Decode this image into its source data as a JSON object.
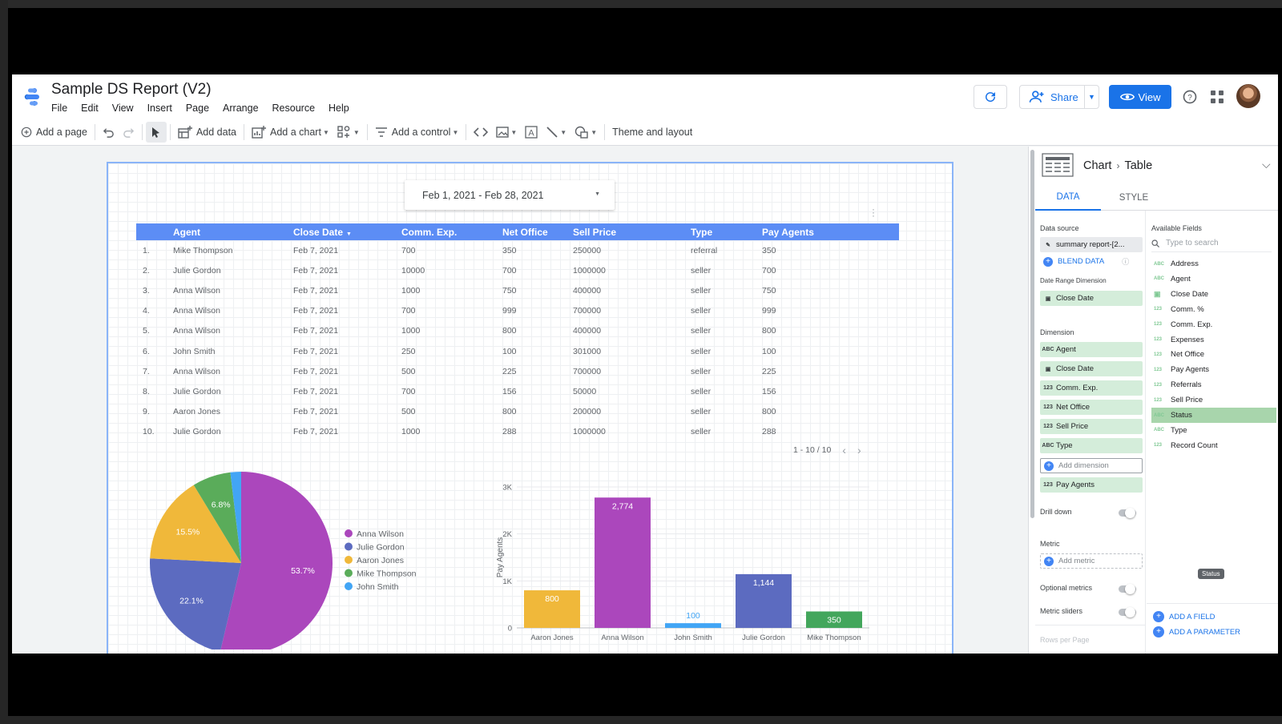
{
  "app": {
    "title": "Sample DS Report (V2)",
    "menu": [
      "File",
      "Edit",
      "View",
      "Insert",
      "Page",
      "Arrange",
      "Resource",
      "Help"
    ],
    "share_label": "Share",
    "view_label": "View",
    "accent": "#1a73e8"
  },
  "toolbar": {
    "add_page": "Add a page",
    "add_data": "Add data",
    "add_chart": "Add a chart",
    "add_control": "Add a control",
    "theme": "Theme and layout"
  },
  "date_control": {
    "value": "Feb 1, 2021 - Feb 28, 2021"
  },
  "table": {
    "headers": [
      "Agent",
      "Close Date",
      "Comm. Exp.",
      "Net Office",
      "Sell Price",
      "Type",
      "Pay Agents"
    ],
    "rows": [
      [
        "1.",
        "Mike Thompson",
        "Feb 7, 2021",
        "700",
        "350",
        "250000",
        "referral",
        "350"
      ],
      [
        "2.",
        "Julie Gordon",
        "Feb 7, 2021",
        "10000",
        "700",
        "1000000",
        "seller",
        "700"
      ],
      [
        "3.",
        "Anna Wilson",
        "Feb 7, 2021",
        "1000",
        "750",
        "400000",
        "seller",
        "750"
      ],
      [
        "4.",
        "Anna Wilson",
        "Feb 7, 2021",
        "700",
        "999",
        "700000",
        "seller",
        "999"
      ],
      [
        "5.",
        "Anna Wilson",
        "Feb 7, 2021",
        "1000",
        "800",
        "400000",
        "seller",
        "800"
      ],
      [
        "6.",
        "John Smith",
        "Feb 7, 2021",
        "250",
        "100",
        "301000",
        "seller",
        "100"
      ],
      [
        "7.",
        "Anna Wilson",
        "Feb 7, 2021",
        "500",
        "225",
        "700000",
        "seller",
        "225"
      ],
      [
        "8.",
        "Julie Gordon",
        "Feb 7, 2021",
        "700",
        "156",
        "50000",
        "seller",
        "156"
      ],
      [
        "9.",
        "Aaron Jones",
        "Feb 7, 2021",
        "500",
        "800",
        "200000",
        "seller",
        "800"
      ],
      [
        "10.",
        "Julie Gordon",
        "Feb 7, 2021",
        "1000",
        "288",
        "1000000",
        "seller",
        "288"
      ]
    ],
    "pager": "1 - 10 / 10"
  },
  "chart_data": [
    {
      "type": "pie",
      "labels": [
        "Anna Wilson",
        "Julie Gordon",
        "Aaron Jones",
        "Mike Thompson",
        "John Smith"
      ],
      "values": [
        53.7,
        22.1,
        15.5,
        6.8,
        1.9
      ],
      "value_labels": [
        "53.7%",
        "22.1%",
        "15.5%",
        "6.8%",
        ""
      ],
      "colors": [
        "#ab47bc",
        "#5c6bc0",
        "#f0b83a",
        "#5aac5a",
        "#42a5f5"
      ],
      "legend": "right"
    },
    {
      "type": "bar",
      "categories": [
        "Aaron Jones",
        "Anna Wilson",
        "John Smith",
        "Julie Gordon",
        "Mike Thompson"
      ],
      "values": [
        800,
        2774,
        100,
        1144,
        350
      ],
      "value_labels": [
        "800",
        "2,774",
        "100",
        "1,144",
        "350"
      ],
      "colors": [
        "#f0b83a",
        "#ab47bc",
        "#42a5f5",
        "#5c6bc0",
        "#43a65c"
      ],
      "ylabel": "Pay Agents",
      "yticks": [
        "0",
        "1K",
        "2K",
        "3K"
      ],
      "ylim": [
        0,
        3000
      ],
      "grid": true
    }
  ],
  "panel": {
    "crumb_chart": "Chart",
    "crumb_type": "Table",
    "tab_data": "DATA",
    "tab_style": "STYLE",
    "data_source_label": "Data source",
    "data_source": "summary report-[2...",
    "blend_data": "BLEND DATA",
    "date_range_label": "Date Range Dimension",
    "date_range": "Close Date",
    "dimension_label": "Dimension",
    "dimensions": [
      {
        "type": "ABC",
        "name": "Agent"
      },
      {
        "type": "cal",
        "name": "Close Date"
      },
      {
        "type": "123",
        "name": "Comm. Exp."
      },
      {
        "type": "123",
        "name": "Net Office"
      },
      {
        "type": "123",
        "name": "Sell Price"
      },
      {
        "type": "ABC",
        "name": "Type"
      }
    ],
    "add_dimension": "Add dimension",
    "extra_dimension": {
      "type": "123",
      "name": "Pay Agents"
    },
    "drill_down": "Drill down",
    "metric_label": "Metric",
    "add_metric": "Add metric",
    "optional_metrics": "Optional metrics",
    "metric_sliders": "Metric sliders",
    "rows_per_page": "Rows per Page",
    "available_fields_label": "Available Fields",
    "search_placeholder": "Type to search",
    "fields": [
      {
        "type": "ABC",
        "name": "Address"
      },
      {
        "type": "ABC",
        "name": "Agent"
      },
      {
        "type": "cal",
        "name": "Close Date"
      },
      {
        "type": "123",
        "name": "Comm. %"
      },
      {
        "type": "123",
        "name": "Comm. Exp."
      },
      {
        "type": "123",
        "name": "Expenses"
      },
      {
        "type": "123",
        "name": "Net Office"
      },
      {
        "type": "123",
        "name": "Pay Agents"
      },
      {
        "type": "123",
        "name": "Referrals"
      },
      {
        "type": "123",
        "name": "Sell Price"
      },
      {
        "type": "ABC",
        "name": "Status"
      },
      {
        "type": "ABC",
        "name": "Type"
      },
      {
        "type": "123",
        "name": "Record Count"
      }
    ],
    "tooltip": "Status",
    "add_field": "ADD A FIELD",
    "add_parameter": "ADD A PARAMETER"
  }
}
